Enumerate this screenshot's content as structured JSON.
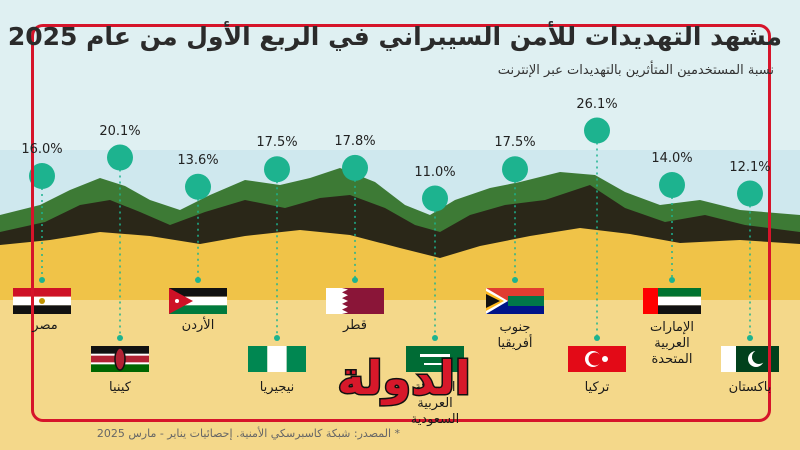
{
  "title": "مشهد التهديدات للأمن السيبراني في الربع الأول من عام 2025",
  "subtitle": "نسبة المستخدمين المتأثرين بالتهديدات عبر الإنترنت",
  "source": "* المصدر: شبكة كاسبرسكي الأمنية. إحصائيات يناير - مارس 2025",
  "logo_text": "الدولة",
  "colors": {
    "accent": "#d6142a",
    "marker": "#1db38f",
    "sand": "#f0c348",
    "hills_dark": "#2a2718",
    "hills_green": "#3d7a35",
    "sky": "#c9e6ec"
  },
  "chart_data": {
    "type": "scatter",
    "title": "مشهد التهديدات للأمن السيبراني في الربع الأول من عام 2025",
    "subtitle": "نسبة المستخدمين المتأثرين بالتهديدات عبر الإنترنت",
    "categories": [
      "مصر",
      "كينيا",
      "الأردن",
      "نيجيريا",
      "قطر",
      "المملكة العربية السعودية",
      "جنوب أفريقيا",
      "تركيا",
      "الإمارات العربية المتحدة",
      "باكستان"
    ],
    "values": [
      16.0,
      20.1,
      13.6,
      17.5,
      17.8,
      11.0,
      17.5,
      26.1,
      14.0,
      12.1
    ],
    "value_labels": [
      "16.0%",
      "20.1%",
      "13.6%",
      "17.5%",
      "17.8%",
      "11.0%",
      "17.5%",
      "26.1%",
      "14.0%",
      "12.1%"
    ],
    "country_labels": [
      "مصر",
      "كينيا",
      "الأردن",
      "نيجيريا",
      "قطر",
      "المملكة\nالعربية\nالسعودية",
      "جنوب\nأفريقيا",
      "تركيا",
      "الإمارات\nالعربية\nالمتحدة",
      "باكستان"
    ],
    "flags": [
      "egypt-flag",
      "kenya-flag",
      "jordan-flag",
      "nigeria-flag",
      "qatar-flag",
      "saudi-flag",
      "south-africa-flag",
      "turkey-flag",
      "uae-flag",
      "pakistan-flag"
    ],
    "unit": "%",
    "grid": false,
    "legend": "none"
  }
}
